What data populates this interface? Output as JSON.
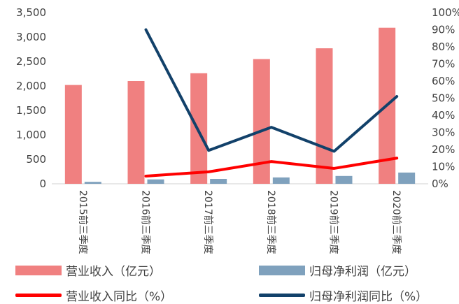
{
  "chart_data": {
    "type": "bar",
    "categories": [
      "2015前三季度",
      "2016前三季度",
      "2017前三季度",
      "2018前三季度",
      "2019前三季度",
      "2020前三季度"
    ],
    "series": [
      {
        "name": "营业收入（亿元）",
        "type": "bar",
        "axis": "left",
        "color": "#f08080",
        "values": [
          2020,
          2100,
          2260,
          2550,
          2770,
          3190
        ]
      },
      {
        "name": "归母净利润（亿元）",
        "type": "bar",
        "axis": "left",
        "color": "#7fa1bd",
        "values": [
          40,
          90,
          100,
          130,
          160,
          230
        ]
      },
      {
        "name": "营业收入同比（%）",
        "type": "line",
        "axis": "right",
        "color": "#ff0000",
        "values": [
          null,
          4.5,
          7,
          13,
          9,
          15
        ]
      },
      {
        "name": "归母净利润同比（%）",
        "type": "line",
        "axis": "right",
        "color": "#12416a",
        "values": [
          null,
          90,
          19.5,
          33,
          19,
          51
        ]
      }
    ],
    "ylim_left": [
      0,
      3500
    ],
    "yticks_left": [
      "0",
      "500",
      "1,000",
      "1,500",
      "2,000",
      "2,500",
      "3,000",
      "3,500"
    ],
    "ylim_right": [
      0,
      100
    ],
    "yticks_right": [
      "0%",
      "10%",
      "20%",
      "30%",
      "40%",
      "50%",
      "60%",
      "70%",
      "80%",
      "90%",
      "100%"
    ],
    "grid": false,
    "legend_position": "bottom"
  }
}
